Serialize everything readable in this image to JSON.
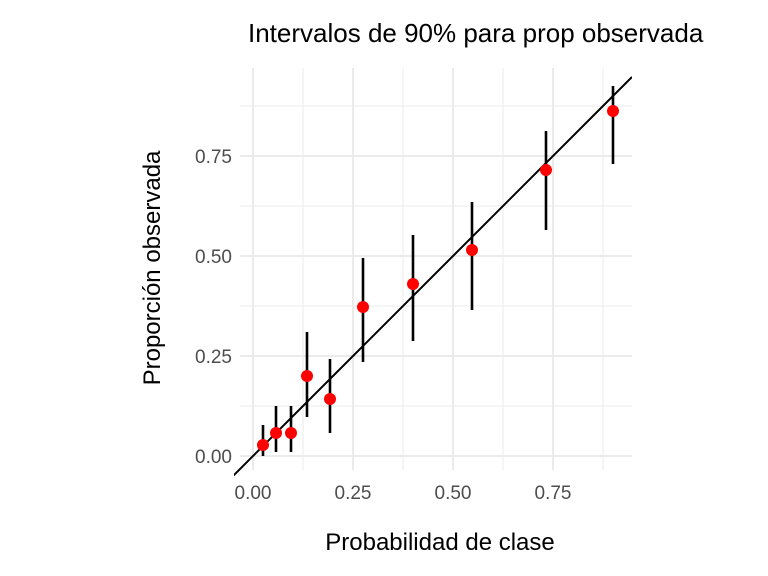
{
  "chart_data": {
    "type": "scatter",
    "title": "Intervalos de 90% para prop observada",
    "xlabel": "Probabilidad de clase",
    "ylabel": "Proporción observada",
    "xlim": [
      -0.0325,
      0.9475
    ],
    "ylim": [
      -0.035,
      0.97
    ],
    "xticks": [
      0,
      0.25,
      0.5,
      0.75
    ],
    "xtick_labels": [
      "0.00",
      "0.25",
      "0.50",
      "0.75"
    ],
    "yticks": [
      0,
      0.25,
      0.5,
      0.75
    ],
    "ytick_labels": [
      "0.00",
      "0.25",
      "0.50",
      "0.75"
    ],
    "grid": true,
    "reference_line": {
      "slope": 1,
      "intercept": 0,
      "color": "#000000"
    },
    "point_color": "#ff0000",
    "errorbar_color": "#000000",
    "points": [
      {
        "x": 0.025,
        "y": 0.0275,
        "lower": 0.0,
        "upper": 0.0775
      },
      {
        "x": 0.0575,
        "y": 0.0575,
        "lower": 0.01,
        "upper": 0.125
      },
      {
        "x": 0.095,
        "y": 0.0575,
        "lower": 0.01,
        "upper": 0.125
      },
      {
        "x": 0.135,
        "y": 0.2,
        "lower": 0.0975,
        "upper": 0.31
      },
      {
        "x": 0.1925,
        "y": 0.1425,
        "lower": 0.0575,
        "upper": 0.2425
      },
      {
        "x": 0.275,
        "y": 0.3725,
        "lower": 0.235,
        "upper": 0.495
      },
      {
        "x": 0.4,
        "y": 0.43,
        "lower": 0.2875,
        "upper": 0.5525
      },
      {
        "x": 0.5475,
        "y": 0.515,
        "lower": 0.365,
        "upper": 0.635
      },
      {
        "x": 0.7325,
        "y": 0.715,
        "lower": 0.565,
        "upper": 0.8125
      },
      {
        "x": 0.9,
        "y": 0.8625,
        "lower": 0.73,
        "upper": 0.925
      }
    ]
  }
}
